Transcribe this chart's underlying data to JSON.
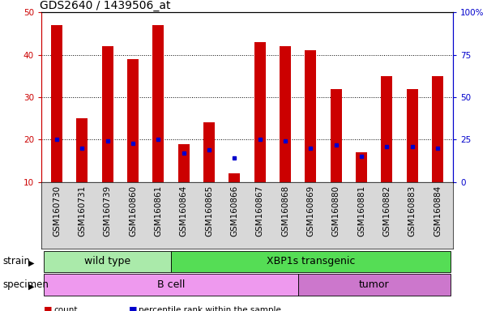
{
  "title": "GDS2640 / 1439506_at",
  "samples": [
    "GSM160730",
    "GSM160731",
    "GSM160739",
    "GSM160860",
    "GSM160861",
    "GSM160864",
    "GSM160865",
    "GSM160866",
    "GSM160867",
    "GSM160868",
    "GSM160869",
    "GSM160880",
    "GSM160881",
    "GSM160882",
    "GSM160883",
    "GSM160884"
  ],
  "counts": [
    47,
    25,
    42,
    39,
    47,
    19,
    24,
    12,
    43,
    42,
    41,
    32,
    17,
    35,
    32,
    35
  ],
  "percentiles": [
    25,
    20,
    24,
    23,
    25,
    17,
    19,
    14,
    25,
    24,
    20,
    22,
    15,
    21,
    21,
    20
  ],
  "ylim_left": [
    10,
    50
  ],
  "ylim_right": [
    0,
    100
  ],
  "yticks_left": [
    10,
    20,
    30,
    40,
    50
  ],
  "yticks_right": [
    0,
    25,
    50,
    75,
    100
  ],
  "ytick_labels_right": [
    "0",
    "25",
    "50",
    "75",
    "100%"
  ],
  "bar_color": "#cc0000",
  "percentile_color": "#0000cc",
  "strain_groups": [
    {
      "label": "wild type",
      "start": 0,
      "end": 5,
      "color": "#aaeaaa"
    },
    {
      "label": "XBP1s transgenic",
      "start": 5,
      "end": 16,
      "color": "#55dd55"
    }
  ],
  "specimen_groups": [
    {
      "label": "B cell",
      "start": 0,
      "end": 10,
      "color": "#ee99ee"
    },
    {
      "label": "tumor",
      "start": 10,
      "end": 16,
      "color": "#cc77cc"
    }
  ],
  "legend_items": [
    {
      "color": "#cc0000",
      "label": "count"
    },
    {
      "color": "#0000cc",
      "label": "percentile rank within the sample"
    }
  ],
  "strain_label": "strain",
  "specimen_label": "specimen",
  "background_color": "#ffffff",
  "axis_color_left": "#cc0000",
  "axis_color_right": "#0000cc",
  "bar_width": 0.45,
  "title_fontsize": 10,
  "tick_fontsize": 7.5,
  "label_fontsize": 8.5,
  "band_label_fontsize": 9,
  "xtick_bg": "#d8d8d8"
}
